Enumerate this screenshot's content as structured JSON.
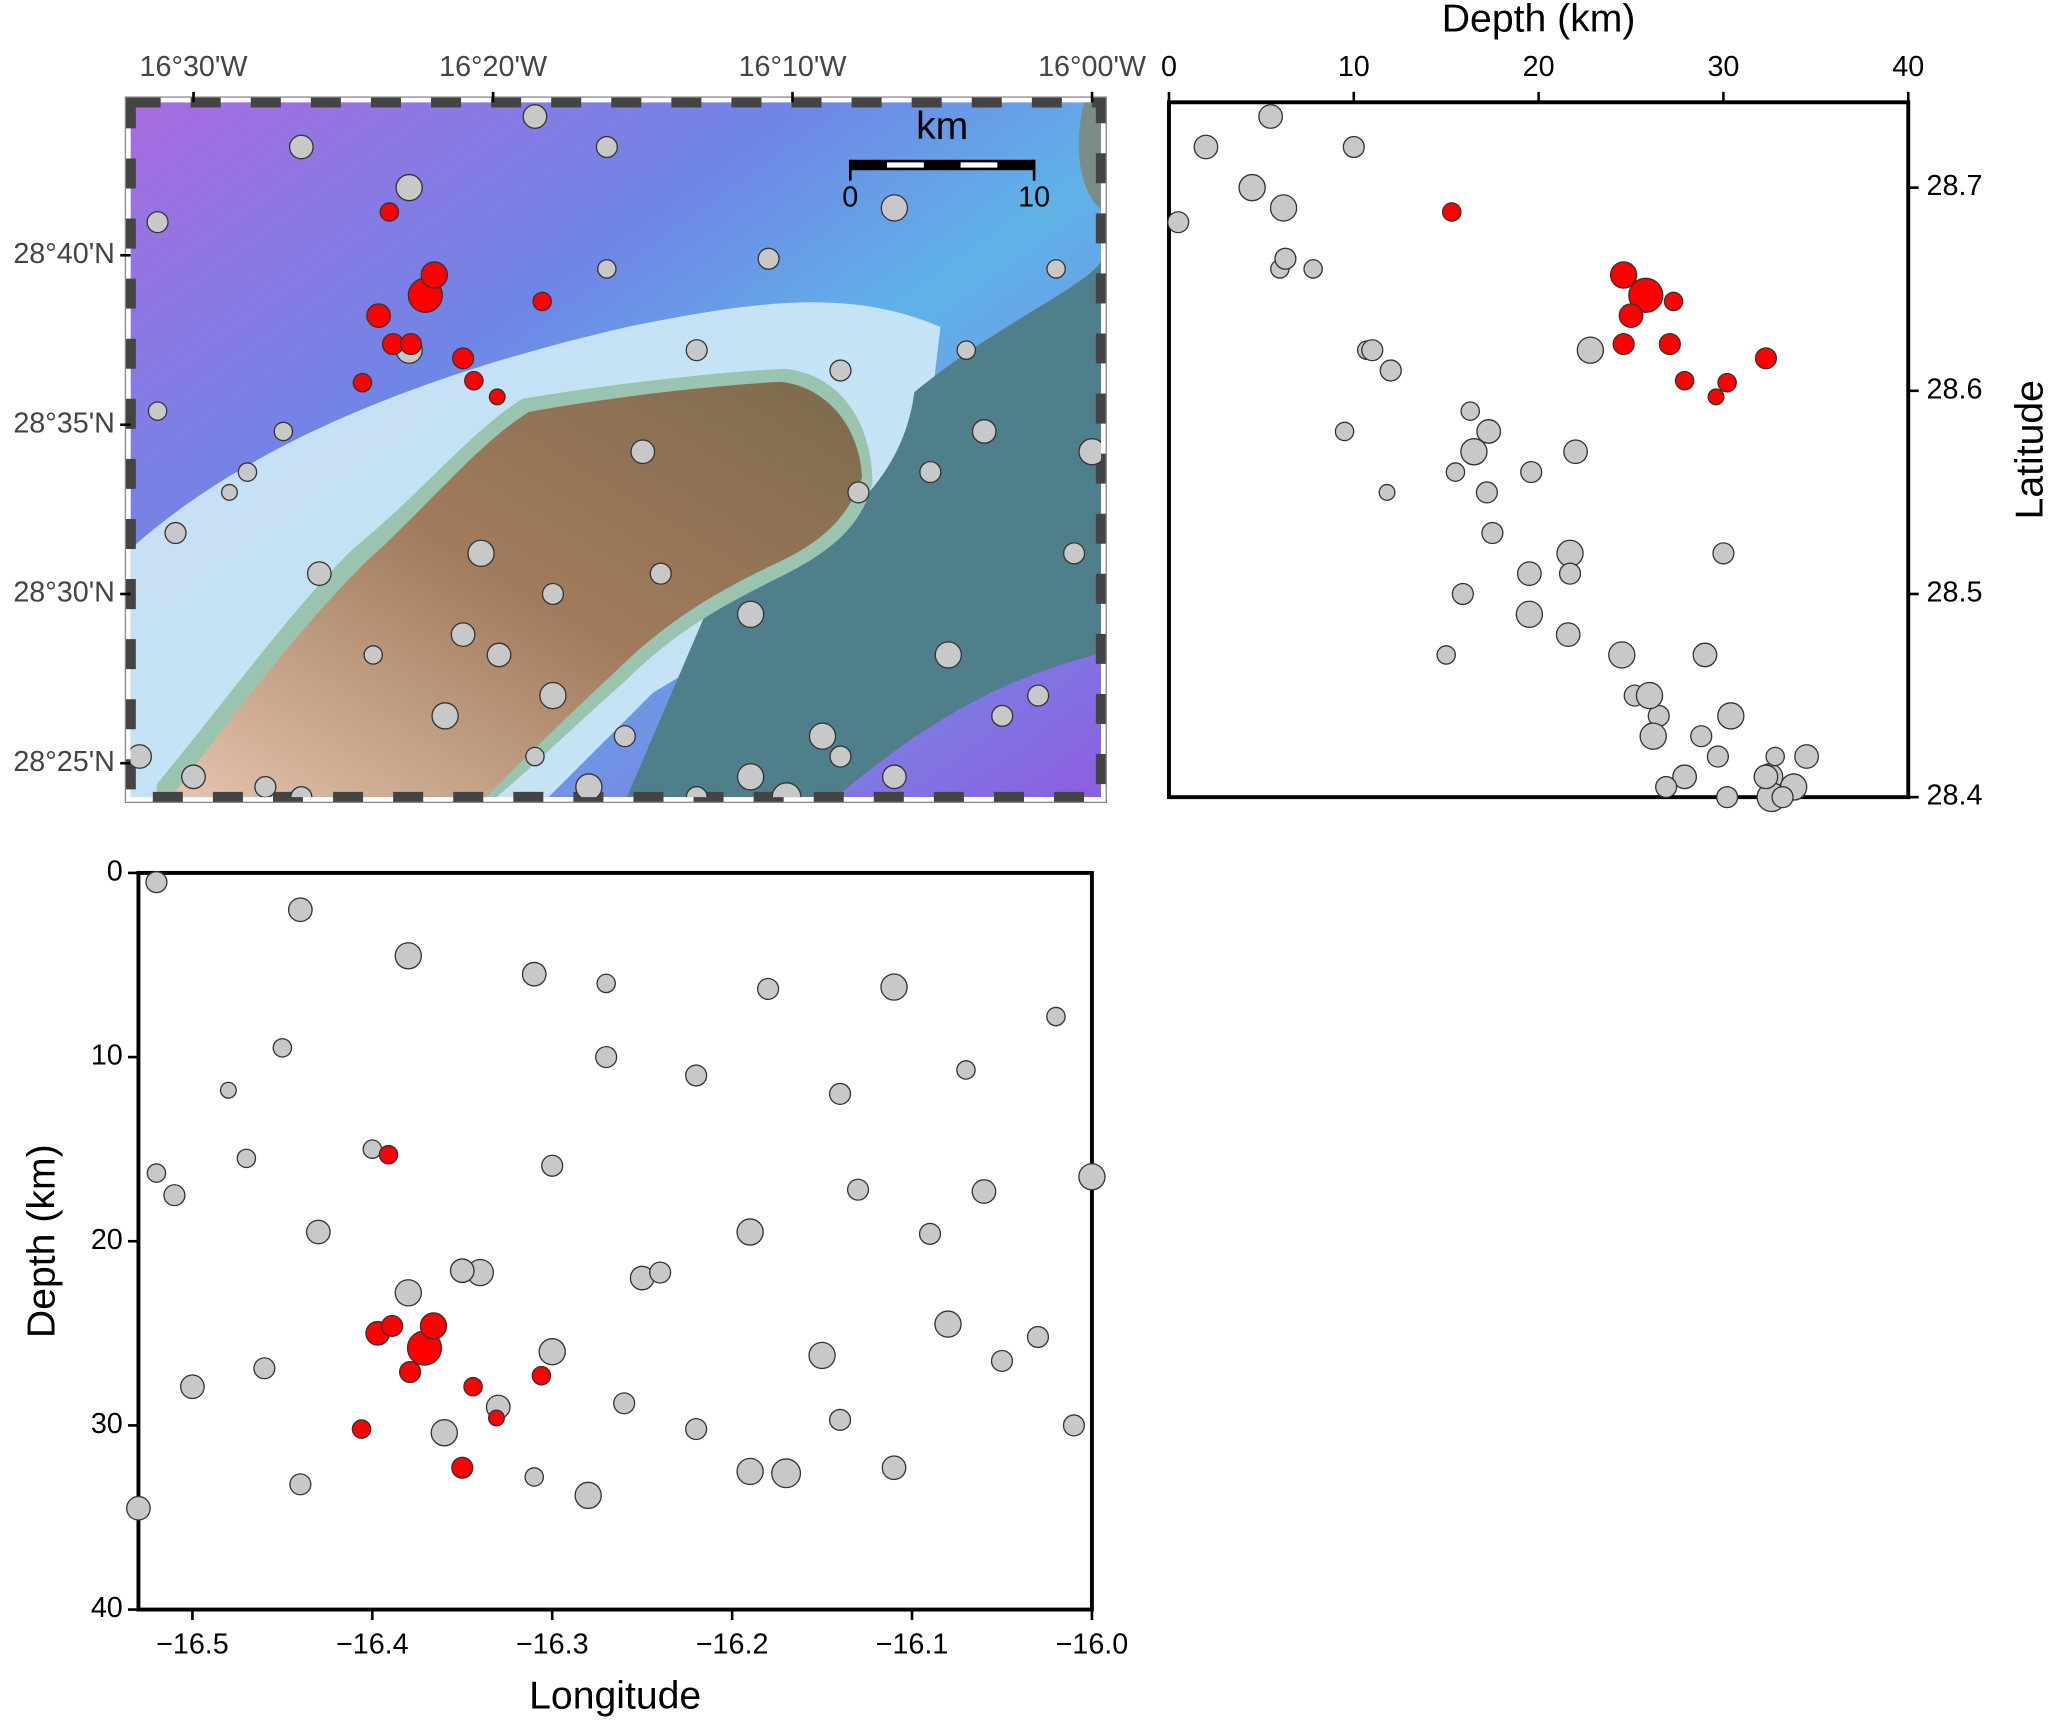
{
  "chart_data": [
    {
      "type": "scatter",
      "annotations": {
        "scale_label": "km",
        "scale_ticks": [
          0,
          10
        ]
      },
      "xlim": [
        -16.535,
        -15.995
      ],
      "ylim": [
        28.4,
        28.742
      ],
      "xticks": [
        {
          "value": -16.5,
          "label": "16°30'W"
        },
        {
          "value": -16.3333,
          "label": "16°20'W"
        },
        {
          "value": -16.1667,
          "label": "16°10'W"
        },
        {
          "value": -16.0,
          "label": "16°00'W"
        }
      ],
      "yticks": [
        {
          "value": 28.4167,
          "label": "28°25'N"
        },
        {
          "value": 28.5,
          "label": "28°30'N"
        },
        {
          "value": 28.5833,
          "label": "28°35'N"
        },
        {
          "value": 28.6667,
          "label": "28°40'N"
        }
      ],
      "series": [
        {
          "color": "#c8c8c8",
          "x": [
            -16.52,
            -16.44,
            -16.38,
            -16.31,
            -16.27,
            -16.18,
            -16.11,
            -16.02,
            -16.07,
            -16.14,
            -16.22,
            -16.45,
            -16.48,
            -16.51,
            -16.47,
            -16.43,
            -16.4,
            -16.34,
            -16.3,
            -16.25,
            -16.24,
            -16.19,
            -16.13,
            -16.09,
            -16.08,
            -16.05,
            -16.03,
            -16.01,
            -16.15,
            -16.14,
            -16.19,
            -16.17,
            -16.11,
            -16.22,
            -16.28,
            -16.31,
            -16.36,
            -16.44,
            -16.53,
            -16.5,
            -16.46,
            -16.33,
            -16.3,
            -16.26,
            -16.38,
            -16.52,
            -16.06,
            -16.0,
            -16.35,
            -16.27
          ],
          "y": [
            28.683,
            28.72,
            28.7,
            28.735,
            28.66,
            28.665,
            28.69,
            28.66,
            28.62,
            28.61,
            28.62,
            28.58,
            28.55,
            28.53,
            28.56,
            28.51,
            28.47,
            28.52,
            28.5,
            28.57,
            28.51,
            28.49,
            28.55,
            28.56,
            28.47,
            28.44,
            28.45,
            28.52,
            28.43,
            28.42,
            28.41,
            28.4,
            28.41,
            28.4,
            28.405,
            28.42,
            28.44,
            28.4,
            28.42,
            28.41,
            28.405,
            28.47,
            28.45,
            28.43,
            28.62,
            28.59,
            28.58,
            28.57,
            28.48,
            28.72
          ],
          "sizes": [
            8,
            9,
            10,
            9,
            7,
            8,
            10,
            7,
            7,
            8,
            8,
            7,
            6,
            8,
            7,
            9,
            7,
            10,
            8,
            9,
            8,
            10,
            8,
            8,
            10,
            8,
            8,
            8,
            10,
            8,
            10,
            11,
            9,
            8,
            10,
            7,
            10,
            8,
            9,
            9,
            8,
            9,
            10,
            8,
            10,
            7,
            9,
            10,
            9,
            8
          ]
        },
        {
          "color": "#ff0000",
          "x": [
            -16.391,
            -16.371,
            -16.366,
            -16.397,
            -16.389,
            -16.379,
            -16.35,
            -16.344,
            -16.331,
            -16.406,
            -16.306
          ],
          "y": [
            28.688,
            28.647,
            28.657,
            28.637,
            28.623,
            28.623,
            28.616,
            28.605,
            28.597,
            28.604,
            28.644
          ],
          "sizes": [
            7,
            13,
            10,
            9,
            8,
            8,
            8,
            7,
            6,
            7,
            7
          ]
        }
      ]
    },
    {
      "type": "scatter",
      "x_label": "Depth (km)",
      "y_label": "Latitude",
      "xlim": [
        0,
        40
      ],
      "ylim": [
        28.4,
        28.742
      ],
      "xticks": [
        0,
        10,
        20,
        30,
        40
      ],
      "yticks": [
        28.4,
        28.5,
        28.6,
        28.7
      ],
      "series": [
        {
          "color": "#c8c8c8",
          "x": [
            0.5,
            2,
            4.5,
            5.5,
            6,
            6.3,
            6.2,
            7.8,
            10.7,
            12,
            11,
            9.5,
            11.8,
            17.5,
            15.5,
            19.5,
            15,
            21.7,
            15.9,
            22,
            21.7,
            19.5,
            17.2,
            19.6,
            24.5,
            26.5,
            25.2,
            30,
            26.2,
            29.7,
            32.5,
            32.6,
            32.3,
            30.2,
            33.8,
            32.8,
            30.4,
            33.2,
            34.5,
            27.9,
            26.9,
            29,
            26,
            28.8,
            22.8,
            16.3,
            17.3,
            16.5,
            21.6,
            10
          ],
          "y": [
            28.683,
            28.72,
            28.7,
            28.735,
            28.66,
            28.665,
            28.69,
            28.66,
            28.62,
            28.61,
            28.62,
            28.58,
            28.55,
            28.53,
            28.56,
            28.51,
            28.47,
            28.52,
            28.5,
            28.57,
            28.51,
            28.49,
            28.55,
            28.56,
            28.47,
            28.44,
            28.45,
            28.52,
            28.43,
            28.42,
            28.41,
            28.4,
            28.41,
            28.4,
            28.405,
            28.42,
            28.44,
            28.4,
            28.42,
            28.41,
            28.405,
            28.47,
            28.45,
            28.43,
            28.62,
            28.59,
            28.58,
            28.57,
            28.48,
            28.72
          ],
          "sizes": [
            8,
            9,
            10,
            9,
            7,
            8,
            10,
            7,
            7,
            8,
            8,
            7,
            6,
            8,
            7,
            9,
            7,
            10,
            8,
            9,
            8,
            10,
            8,
            8,
            10,
            8,
            8,
            8,
            10,
            8,
            10,
            11,
            9,
            8,
            10,
            7,
            10,
            8,
            9,
            9,
            8,
            9,
            10,
            8,
            10,
            7,
            9,
            10,
            9,
            8
          ]
        },
        {
          "color": "#ff0000",
          "x": [
            15.3,
            25.8,
            24.6,
            25,
            24.6,
            27.1,
            32.3,
            27.9,
            29.6,
            30.2,
            27.3
          ],
          "y": [
            28.688,
            28.647,
            28.657,
            28.637,
            28.623,
            28.623,
            28.616,
            28.605,
            28.597,
            28.604,
            28.644
          ],
          "sizes": [
            7,
            13,
            10,
            9,
            8,
            8,
            8,
            7,
            6,
            7,
            7
          ]
        }
      ]
    },
    {
      "type": "scatter",
      "x_label": "Longitude",
      "y_label": "Depth (km)",
      "xlim": [
        -16.53,
        -16.0
      ],
      "ylim": [
        40,
        0
      ],
      "xticks": [
        {
          "value": -16.5,
          "label": "−16.5"
        },
        {
          "value": -16.4,
          "label": "−16.4"
        },
        {
          "value": -16.3,
          "label": "−16.3"
        },
        {
          "value": -16.2,
          "label": "−16.2"
        },
        {
          "value": -16.1,
          "label": "−16.1"
        },
        {
          "value": -16.0,
          "label": "−16.0"
        }
      ],
      "yticks": [
        0,
        10,
        20,
        30,
        40
      ],
      "series": [
        {
          "color": "#c8c8c8",
          "x": [
            -16.52,
            -16.44,
            -16.38,
            -16.31,
            -16.27,
            -16.18,
            -16.11,
            -16.02,
            -16.07,
            -16.14,
            -16.22,
            -16.45,
            -16.48,
            -16.51,
            -16.47,
            -16.43,
            -16.4,
            -16.34,
            -16.3,
            -16.25,
            -16.24,
            -16.19,
            -16.13,
            -16.09,
            -16.08,
            -16.05,
            -16.03,
            -16.01,
            -16.15,
            -16.14,
            -16.19,
            -16.17,
            -16.11,
            -16.22,
            -16.28,
            -16.31,
            -16.36,
            -16.44,
            -16.53,
            -16.5,
            -16.46,
            -16.33,
            -16.3,
            -16.26,
            -16.38,
            -16.52,
            -16.06,
            -16.0,
            -16.35,
            -16.27
          ],
          "y": [
            0.5,
            2,
            4.5,
            5.5,
            6,
            6.3,
            6.2,
            7.8,
            10.7,
            12,
            11,
            9.5,
            11.8,
            17.5,
            15.5,
            19.5,
            15,
            21.7,
            15.9,
            22,
            21.7,
            19.5,
            17.2,
            19.6,
            24.5,
            26.5,
            25.2,
            30,
            26.2,
            29.7,
            32.5,
            32.6,
            32.3,
            30.2,
            33.8,
            32.8,
            30.4,
            33.2,
            34.5,
            27.9,
            26.9,
            29,
            26,
            28.8,
            22.8,
            16.3,
            17.3,
            16.5,
            21.6,
            10
          ],
          "sizes": [
            8,
            9,
            10,
            9,
            7,
            8,
            10,
            7,
            7,
            8,
            8,
            7,
            6,
            8,
            7,
            9,
            7,
            10,
            8,
            9,
            8,
            10,
            8,
            8,
            10,
            8,
            8,
            8,
            10,
            8,
            10,
            11,
            9,
            8,
            10,
            7,
            10,
            8,
            9,
            9,
            8,
            9,
            10,
            8,
            10,
            7,
            9,
            10,
            9,
            8
          ]
        },
        {
          "color": "#ff0000",
          "x": [
            -16.391,
            -16.371,
            -16.366,
            -16.397,
            -16.389,
            -16.379,
            -16.35,
            -16.344,
            -16.331,
            -16.406,
            -16.306
          ],
          "y": [
            15.3,
            25.8,
            24.6,
            25,
            24.6,
            27.1,
            32.3,
            27.9,
            29.6,
            30.2,
            27.3
          ],
          "sizes": [
            7,
            13,
            10,
            9,
            8,
            8,
            8,
            7,
            6,
            7,
            7
          ]
        }
      ]
    }
  ]
}
